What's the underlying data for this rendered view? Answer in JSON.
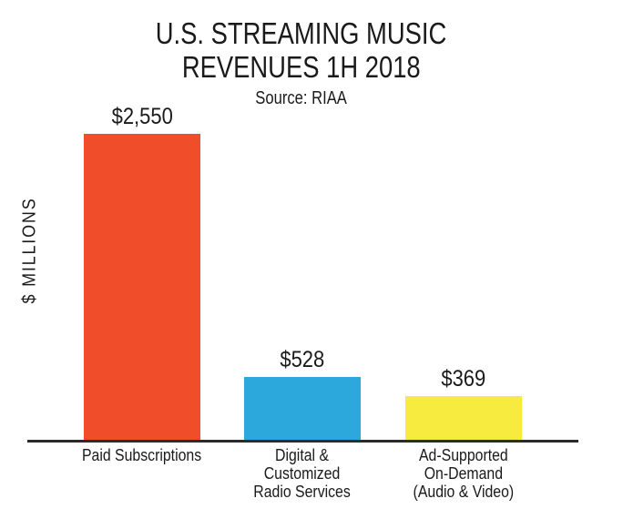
{
  "title": {
    "line1": "U.S. STREAMING MUSIC",
    "line2": "REVENUES 1H 2018",
    "source": "Source: RIAA"
  },
  "y_axis_label": "$ MILLIONS",
  "colors": {
    "axis": "#2B2B2B",
    "text": "#1A1A1A",
    "background": "#FFFFFF"
  },
  "chart_data": {
    "type": "bar",
    "title": "U.S. STREAMING MUSIC REVENUES 1H 2018",
    "subtitle": "Source: RIAA",
    "xlabel": "",
    "ylabel": "$ MILLIONS",
    "ylim": [
      0,
      2550
    ],
    "grid": false,
    "legend": false,
    "categories": [
      "Paid Subscriptions",
      "Digital & Customized Radio Services",
      "Ad-Supported On-Demand (Audio & Video)"
    ],
    "values": [
      2550,
      528,
      369
    ],
    "value_labels": [
      "$2,550",
      "$528",
      "$369"
    ],
    "bar_colors": [
      "#F04E2A",
      "#2CA8DC",
      "#F6EB3E"
    ],
    "bars": [
      {
        "category": "Paid Subscriptions",
        "label_lines": [
          "Paid Subscriptions"
        ],
        "value": 2550,
        "value_label": "$2,550",
        "color": "#F04E2A"
      },
      {
        "category": "Digital & Customized Radio Services",
        "label_lines": [
          "Digital &",
          "Customized",
          "Radio Services"
        ],
        "value": 528,
        "value_label": "$528",
        "color": "#2CA8DC"
      },
      {
        "category": "Ad-Supported On-Demand (Audio & Video)",
        "label_lines": [
          "Ad-Supported",
          "On-Demand",
          "(Audio & Video)"
        ],
        "value": 369,
        "value_label": "$369",
        "color": "#F6EB3E"
      }
    ]
  }
}
